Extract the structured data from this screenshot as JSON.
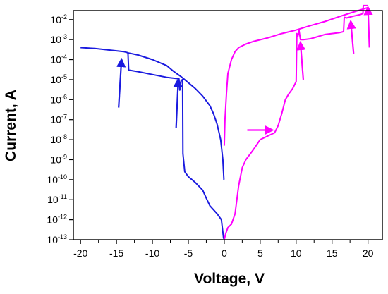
{
  "chart_data": {
    "type": "line",
    "xlabel": "Voltage, V",
    "ylabel": "Current, A",
    "xlim": [
      -21,
      22
    ],
    "ylim_log10": [
      -13,
      -1.55
    ],
    "y_scale": "log",
    "grid": false,
    "legend": "none",
    "x_ticks": [
      -20,
      -15,
      -10,
      -5,
      0,
      5,
      10,
      15,
      20
    ],
    "x_tick_labels": [
      "-20",
      "-15",
      "-10",
      "-5",
      "0",
      "5",
      "10",
      "15",
      "20"
    ],
    "y_ticks_log10": [
      -13,
      -12,
      -11,
      -10,
      -9,
      -8,
      -7,
      -6,
      -5,
      -4,
      -3,
      -2
    ],
    "y_tick_labels": [
      {
        "base": "10",
        "exp": "-13"
      },
      {
        "base": "10",
        "exp": "-12"
      },
      {
        "base": "10",
        "exp": "-11"
      },
      {
        "base": "10",
        "exp": "-10"
      },
      {
        "base": "10",
        "exp": "-9"
      },
      {
        "base": "10",
        "exp": "-8"
      },
      {
        "base": "10",
        "exp": "-7"
      },
      {
        "base": "10",
        "exp": "-6"
      },
      {
        "base": "10",
        "exp": "-5"
      },
      {
        "base": "10",
        "exp": "-4"
      },
      {
        "base": "10",
        "exp": "-3"
      },
      {
        "base": "10",
        "exp": "-2"
      }
    ],
    "series": [
      {
        "color": "#1a1adf",
        "points": [
          [
            -20,
            0.0004
          ],
          [
            -18,
            0.00036
          ],
          [
            -16,
            0.0003
          ],
          [
            -14,
            0.00025
          ],
          [
            -13.4,
            0.00022
          ],
          [
            -13.3,
            3e-05
          ],
          [
            -12,
            2.5e-05
          ],
          [
            -10,
            1.8e-05
          ],
          [
            -8,
            1.3e-05
          ],
          [
            -6.3,
            1.1e-05
          ],
          [
            -6.2,
            3e-06
          ],
          [
            -6,
            9e-06
          ],
          [
            -5.8,
            1e-05
          ],
          [
            -5.75,
            2e-09
          ],
          [
            -5.5,
            2.5e-10
          ],
          [
            -5,
            1.4e-10
          ],
          [
            -4.5,
            1e-10
          ],
          [
            -4,
            7e-11
          ],
          [
            -3,
            3e-11
          ],
          [
            -2.5,
            1.2e-11
          ],
          [
            -2,
            5e-12
          ],
          [
            -1,
            2e-12
          ],
          [
            -0.4,
            1e-12
          ],
          [
            -0.1,
            1.2e-13
          ],
          [
            0,
            1.1e-13
          ],
          [
            0.02,
            1e-13
          ]
        ]
      },
      {
        "color": "#1a1adf",
        "points": [
          [
            -13.5,
            0.00022
          ],
          [
            -12,
            0.00017
          ],
          [
            -10,
            0.0001
          ],
          [
            -8,
            5e-05
          ],
          [
            -7,
            2.5e-05
          ],
          [
            -6,
            1.4e-05
          ],
          [
            -5,
            7e-06
          ],
          [
            -4,
            3.5e-06
          ],
          [
            -3,
            1.5e-06
          ],
          [
            -2,
            5e-07
          ],
          [
            -1.5,
            2e-07
          ],
          [
            -1,
            6e-08
          ],
          [
            -0.5,
            1e-08
          ],
          [
            -0.2,
            1e-09
          ],
          [
            -0.05,
            1e-10
          ],
          [
            0,
            1e-10
          ]
        ]
      },
      {
        "color": "#ff00ff",
        "points": [
          [
            0,
            1e-13
          ],
          [
            0.2,
            2e-13
          ],
          [
            0.5,
            4e-13
          ],
          [
            1,
            6e-13
          ],
          [
            1.5,
            2e-12
          ],
          [
            2,
            5e-11
          ],
          [
            2.5,
            4e-10
          ],
          [
            3,
            1e-09
          ],
          [
            4,
            3e-09
          ],
          [
            5,
            1e-08
          ],
          [
            6,
            1.5e-08
          ],
          [
            7,
            2.2e-08
          ],
          [
            7.5,
            5e-08
          ],
          [
            8,
            2e-07
          ],
          [
            8.5,
            1e-06
          ],
          [
            9,
            2e-06
          ],
          [
            9.5,
            3.5e-06
          ],
          [
            10,
            8e-06
          ],
          [
            10.1,
            0.002
          ],
          [
            10.25,
            0.0015
          ],
          [
            10.4,
            0.003
          ],
          [
            10.6,
            0.001
          ],
          [
            11,
            0.001
          ],
          [
            12,
            0.0011
          ],
          [
            13,
            0.0014
          ],
          [
            14,
            0.0018
          ],
          [
            15,
            0.002
          ],
          [
            16,
            0.0022
          ],
          [
            16.6,
            0.0025
          ],
          [
            16.7,
            0.013
          ],
          [
            17,
            0.012
          ],
          [
            18,
            0.015
          ],
          [
            19,
            0.018
          ],
          [
            19.3,
            0.02
          ],
          [
            19.35,
            0.05
          ],
          [
            20,
            0.05
          ]
        ]
      },
      {
        "color": "#ff00ff",
        "points": [
          [
            0,
            5e-09
          ],
          [
            0.1,
            1e-07
          ],
          [
            0.3,
            2e-06
          ],
          [
            0.5,
            2e-05
          ],
          [
            1,
            0.0001
          ],
          [
            1.5,
            0.00025
          ],
          [
            2,
            0.0004
          ],
          [
            3,
            0.0006
          ],
          [
            4,
            0.0008
          ],
          [
            6,
            0.0012
          ],
          [
            8,
            0.002
          ],
          [
            10,
            0.003
          ],
          [
            12,
            0.005
          ],
          [
            14,
            0.008
          ],
          [
            16,
            0.014
          ],
          [
            18,
            0.024
          ],
          [
            19.5,
            0.035
          ],
          [
            20,
            0.04
          ]
        ]
      }
    ],
    "arrows": [
      {
        "color": "#1a1adf",
        "from": [
          -14.7,
          4e-07
        ],
        "to": [
          -14.3,
          0.0001
        ]
      },
      {
        "color": "#1a1adf",
        "from": [
          -6.7,
          4e-08
        ],
        "to": [
          -6.4,
          1e-05
        ]
      },
      {
        "color": "#ff00ff",
        "from": [
          3.2,
          3e-08
        ],
        "to": [
          6.7,
          3e-08
        ]
      },
      {
        "color": "#ff00ff",
        "from": [
          11,
          1e-05
        ],
        "to": [
          10.6,
          0.0007
        ]
      },
      {
        "color": "#ff00ff",
        "from": [
          18,
          0.0002
        ],
        "to": [
          17.6,
          0.008
        ]
      },
      {
        "color": "#ff00ff",
        "from": [
          20.2,
          0.0004
        ],
        "to": [
          20,
          0.04
        ]
      }
    ]
  }
}
